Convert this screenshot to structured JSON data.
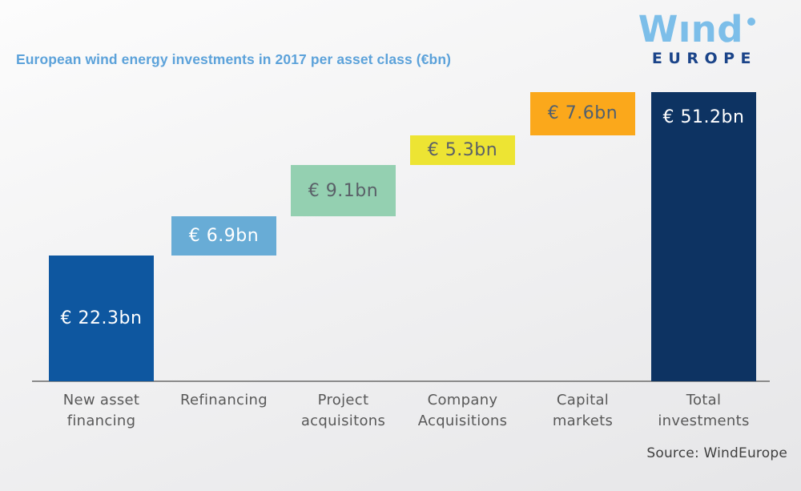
{
  "title": "European wind energy investments in 2017 per asset class (€bn)",
  "logo": {
    "word": "Wınd",
    "sub": "EUROPE",
    "word_color": "#7cbee9",
    "sub_color": "#1b4489"
  },
  "source": "Source: WindEurope",
  "colors": {
    "title": "#5ca2da",
    "axis": "#8a8a8a",
    "category_text": "#595959",
    "background_top": "#fcfcfc",
    "background_bottom": "#e6e6e8"
  },
  "chart_data": {
    "type": "bar",
    "subtype": "waterfall",
    "title": "European wind energy investments in 2017 per asset class (€bn)",
    "unit": "€bn",
    "ylim": [
      0,
      51.2
    ],
    "grid": false,
    "legend": false,
    "categories": [
      "New asset financing",
      "Refinancing",
      "Project acquisitons",
      "Company Acquisitions",
      "Capital markets",
      "Total investments"
    ],
    "values": [
      22.3,
      6.9,
      9.1,
      5.3,
      7.6,
      51.2
    ],
    "bars": [
      {
        "category_lines": [
          "New asset",
          "financing"
        ],
        "value": 22.3,
        "start": 0,
        "label": "€ 22.3bn",
        "color": "#0e57a0",
        "label_color": "#ffffff",
        "label_valign": "center"
      },
      {
        "category_lines": [
          "Refinancing"
        ],
        "value": 6.9,
        "start": 22.3,
        "label": "€ 6.9bn",
        "color": "#68acd6",
        "label_color": "#ffffff",
        "label_valign": "center"
      },
      {
        "category_lines": [
          "Project",
          "acquisitons"
        ],
        "value": 9.1,
        "start": 29.2,
        "label": "€ 9.1bn",
        "color": "#94d0b1",
        "label_color": "#5a6068",
        "label_valign": "center"
      },
      {
        "category_lines": [
          "Company",
          "Acquisitions"
        ],
        "value": 5.3,
        "start": 38.3,
        "label": "€ 5.3bn",
        "color": "#ede433",
        "label_color": "#5a6068",
        "label_valign": "center"
      },
      {
        "category_lines": [
          "Capital",
          "markets"
        ],
        "value": 7.6,
        "start": 43.6,
        "label": "€ 7.6bn",
        "color": "#fba81b",
        "label_color": "#51606f",
        "label_valign": "center"
      },
      {
        "category_lines": [
          "Total",
          "investments"
        ],
        "value": 51.2,
        "start": 0,
        "label": "€ 51.2bn",
        "color": "#0d3362",
        "label_color": "#ffffff",
        "label_valign": "top"
      }
    ]
  }
}
